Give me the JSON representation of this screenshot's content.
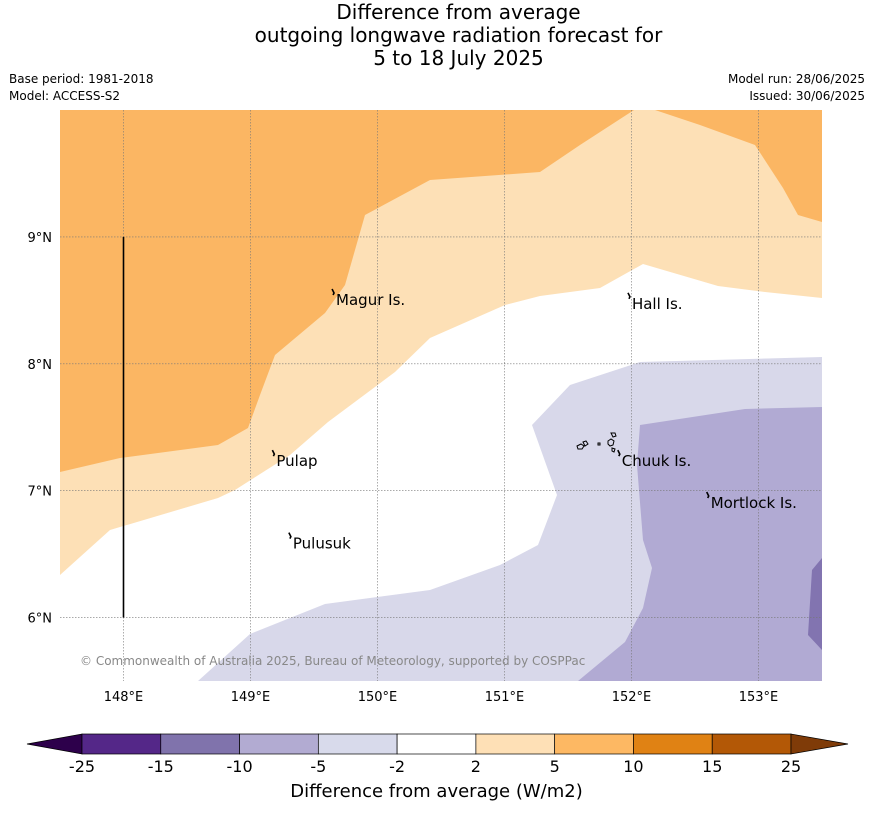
{
  "title": {
    "line1": "Difference from average",
    "line2": "outgoing longwave radiation forecast for",
    "line3": "5 to 18 July 2025"
  },
  "info_left": {
    "base_period": "Base period: 1981-2018",
    "model": "Model: ACCESS-S2"
  },
  "info_right": {
    "model_run": "Model run: 28/06/2025",
    "issued": "Issued: 30/06/2025"
  },
  "map": {
    "lon_range": [
      147.5,
      153.5
    ],
    "lat_range": [
      5.5,
      10.0
    ],
    "x_ticks": [
      {
        "value": 148,
        "label": "148°E"
      },
      {
        "value": 149,
        "label": "149°E"
      },
      {
        "value": 150,
        "label": "150°E"
      },
      {
        "value": 151,
        "label": "151°E"
      },
      {
        "value": 152,
        "label": "152°E"
      },
      {
        "value": 153,
        "label": "153°E"
      }
    ],
    "y_ticks": [
      {
        "value": 6,
        "label": "6°N"
      },
      {
        "value": 7,
        "label": "7°N"
      },
      {
        "value": 8,
        "label": "8°N"
      },
      {
        "value": 9,
        "label": "9°N"
      }
    ],
    "places": [
      {
        "name": "Magur Is.",
        "lon": 149.65,
        "lat": 8.55
      },
      {
        "name": "Hall Is.",
        "lon": 151.98,
        "lat": 8.52
      },
      {
        "name": "Pulap",
        "lon": 149.18,
        "lat": 7.28
      },
      {
        "name": "Chuuk Is.",
        "lon": 151.9,
        "lat": 7.28
      },
      {
        "name": "Mortlock Is.",
        "lon": 152.6,
        "lat": 6.95
      },
      {
        "name": "Pulusuk",
        "lon": 149.31,
        "lat": 6.63
      }
    ],
    "copyright": "© Commonwealth of Australia 2025, Bureau of Meteorology, supported by COSPPac",
    "colors": {
      "p10": "#fbb663",
      "p5": "#fde0b6",
      "m5": "#d8d8ea",
      "m10": "#b1aad3",
      "m15": "#8274b0"
    },
    "meridian_line": {
      "lon": 148,
      "lat_from": 6.0,
      "lat_to": 9.0
    }
  },
  "colorbar": {
    "title": "Difference from average (W/m2)",
    "ticks": [
      "-25",
      "-15",
      "-10",
      "-5",
      "-2",
      "2",
      "5",
      "10",
      "15",
      "25"
    ],
    "bins": [
      {
        "range": "-25 to -15",
        "color": "#542788"
      },
      {
        "range": "-15 to -10",
        "color": "#8073ac"
      },
      {
        "range": "-10 to -5",
        "color": "#b2abd2"
      },
      {
        "range": "-5 to -2",
        "color": "#d8daeb"
      },
      {
        "range": "-2 to 2",
        "color": "#ffffff"
      },
      {
        "range": "2 to 5",
        "color": "#fee0b6"
      },
      {
        "range": "5 to 10",
        "color": "#fdb863"
      },
      {
        "range": "10 to 15",
        "color": "#e08214"
      },
      {
        "range": "15 to 25",
        "color": "#b35806"
      }
    ],
    "low_extend_color": "#2d004b",
    "high_extend_color": "#7f3b08"
  }
}
